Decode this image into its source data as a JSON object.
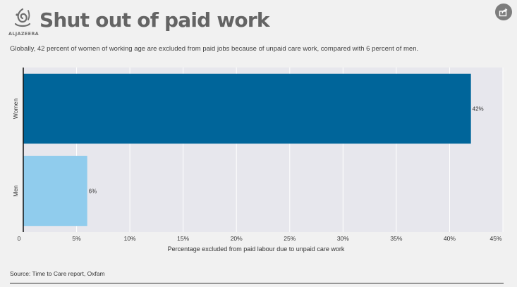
{
  "header": {
    "logo_icon": "al-jazeera-calligraphy-logo",
    "logo_text": "ALJAZEERA",
    "title": "Shut out of paid work",
    "share_icon": "share-icon"
  },
  "subtitle": "Globally, 42 percent of women of working age are excluded from paid jobs because of unpaid care work, compared with 6 percent of men.",
  "source": "Source: Time to Care report, Oxfam",
  "chart_data": {
    "type": "bar",
    "orientation": "horizontal",
    "categories": [
      "Women",
      "Men"
    ],
    "values": [
      42,
      6
    ],
    "value_labels": [
      "42%",
      "6%"
    ],
    "bar_colors": [
      "#00659a",
      "#90cced"
    ],
    "xlabel": "Percentage excluded from paid labour due to unpaid care work",
    "ylabel": "",
    "xlim": [
      0,
      45
    ],
    "xticks": [
      0,
      5,
      10,
      15,
      20,
      25,
      30,
      35,
      40,
      45
    ],
    "xtick_labels": [
      "0",
      "5%",
      "10%",
      "15%",
      "20%",
      "25%",
      "30%",
      "35%",
      "40%",
      "45%"
    ],
    "grid": true
  }
}
